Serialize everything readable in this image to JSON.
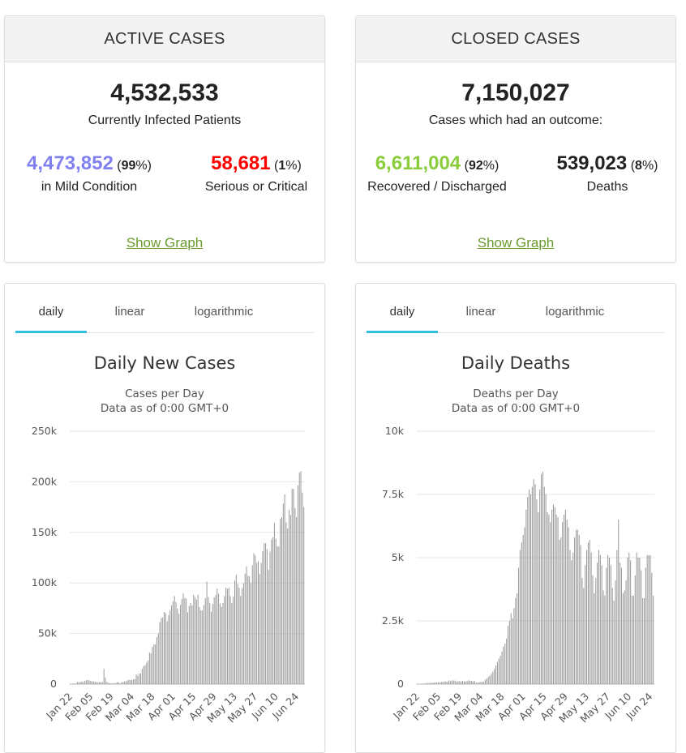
{
  "active": {
    "title": "ACTIVE CASES",
    "total": "4,532,533",
    "total_label": "Currently Infected Patients",
    "mild_value": "4,473,852",
    "mild_pct": "99",
    "mild_label": "in Mild Condition",
    "serious_value": "58,681",
    "serious_pct": "1",
    "serious_label": "Serious or Critical",
    "show_graph": "Show Graph"
  },
  "closed": {
    "title": "CLOSED CASES",
    "total": "7,150,027",
    "total_label": "Cases which had an outcome:",
    "recovered_value": "6,611,004",
    "recovered_pct": "92",
    "recovered_label": "Recovered / Discharged",
    "deaths_value": "539,023",
    "deaths_pct": "8",
    "deaths_label": "Deaths",
    "show_graph": "Show Graph"
  },
  "colors": {
    "mild": "#8080f0",
    "serious": "#ff0000",
    "recovered": "#8acc3a",
    "link": "#6a9a2d",
    "tab_active": "#30c0de",
    "bar": "#999999"
  },
  "tabs": [
    "daily",
    "linear",
    "logarithmic"
  ],
  "chart_data": [
    {
      "type": "bar",
      "title": "Daily New Cases",
      "subtitle": "Cases per Day",
      "subtitle2": "Data as of 0:00 GMT+0",
      "x_tick_labels": [
        "Jan 22",
        "Feb 05",
        "Feb 19",
        "Mar 04",
        "Mar 18",
        "Apr 01",
        "Apr 15",
        "Apr 29",
        "May 13",
        "May 27",
        "Jun 10",
        "Jun 24"
      ],
      "y_tick_labels": [
        "0",
        "50k",
        "100k",
        "150k",
        "200k",
        "250k"
      ],
      "ylim": [
        0,
        250000
      ],
      "start": "Jan 22",
      "values": [
        600,
        100,
        600,
        500,
        700,
        2100,
        1700,
        2000,
        2600,
        2100,
        3100,
        3900,
        4000,
        3700,
        3200,
        2600,
        2700,
        2400,
        2000,
        1800,
        2000,
        1900,
        2000,
        15100,
        6500,
        2100,
        1100,
        900,
        900,
        500,
        900,
        1100,
        1800,
        1600,
        600,
        1700,
        2000,
        2700,
        2800,
        3800,
        4300,
        3900,
        4300,
        4600,
        5000,
        9500,
        8200,
        10300,
        10600,
        15100,
        17900,
        18600,
        21100,
        23400,
        31200,
        30300,
        37000,
        39200,
        39300,
        46300,
        50200,
        61300,
        65300,
        66000,
        71200,
        70000,
        62100,
        68200,
        73100,
        77900,
        81900,
        86900,
        81100,
        74800,
        69500,
        78400,
        84000,
        89500,
        85200,
        84500,
        71000,
        77200,
        80300,
        77600,
        88300,
        86000,
        83600,
        88400,
        76200,
        73100,
        72800,
        78100,
        84900,
        101300,
        86100,
        80300,
        71500,
        79300,
        85700,
        88000,
        94300,
        89400,
        79700,
        76300,
        80100,
        86900,
        95300,
        94300,
        95100,
        86900,
        80100,
        86300,
        102300,
        107900,
        99100,
        95300,
        87100,
        94800,
        99700,
        109300,
        116300,
        107000,
        106600,
        99800,
        117600,
        129400,
        127200,
        119900,
        121600,
        108700,
        119900,
        131200,
        139200,
        139400,
        133300,
        112900,
        130900,
        142700,
        145300,
        159200,
        143800,
        136000,
        136200,
        163400,
        165000,
        178500,
        187600,
        159800,
        153800,
        172100,
        167200,
        193200,
        193000,
        174100,
        165100,
        196600,
        209100,
        210600,
        189400,
        175000
      ]
    },
    {
      "type": "bar",
      "title": "Daily Deaths",
      "subtitle": "Deaths per Day",
      "subtitle2": "Data as of 0:00 GMT+0",
      "x_tick_labels": [
        "Jan 22",
        "Feb 05",
        "Feb 19",
        "Mar 04",
        "Mar 18",
        "Apr 01",
        "Apr 15",
        "Apr 29",
        "May 13",
        "May 27",
        "Jun 10",
        "Jun 24"
      ],
      "y_tick_labels": [
        "0",
        "2.5k",
        "5k",
        "7.5k",
        "10k"
      ],
      "ylim": [
        0,
        10000
      ],
      "start": "Jan 22",
      "values": [
        17,
        1,
        8,
        16,
        14,
        26,
        26,
        38,
        43,
        46,
        45,
        57,
        64,
        66,
        73,
        73,
        86,
        89,
        97,
        108,
        97,
        146,
        122,
        143,
        143,
        139,
        100,
        118,
        109,
        107,
        121,
        112,
        105,
        116,
        152,
        129,
        128,
        111,
        112,
        58,
        64,
        75,
        86,
        92,
        102,
        169,
        216,
        289,
        330,
        409,
        496,
        592,
        735,
        880,
        1007,
        1120,
        1291,
        1484,
        1600,
        1800,
        2300,
        2500,
        2800,
        2600,
        3000,
        3400,
        3600,
        4600,
        5300,
        5600,
        5900,
        6200,
        6900,
        7400,
        7700,
        7500,
        7800,
        8100,
        7900,
        7300,
        6800,
        7700,
        8300,
        8400,
        7800,
        7500,
        6800,
        6700,
        6400,
        6900,
        7100,
        7000,
        6700,
        6600,
        5700,
        5800,
        6400,
        6700,
        6900,
        6500,
        6200,
        5300,
        4900,
        5200,
        5800,
        6100,
        6100,
        5900,
        5500,
        4200,
        3800,
        4700,
        5300,
        5600,
        5700,
        5200,
        4300,
        3600,
        4200,
        4800,
        5300,
        5100,
        4700,
        3700,
        3500,
        4600,
        5100,
        5000,
        4700,
        3800,
        3300,
        4100,
        5300,
        6500,
        4800,
        4600,
        3600,
        3700,
        4100,
        5000,
        5200,
        4900,
        3500,
        3500,
        4300,
        5200,
        5000,
        5000,
        4500,
        3400,
        3400,
        4600,
        5100,
        5100,
        5100,
        4400,
        3500
      ]
    }
  ]
}
